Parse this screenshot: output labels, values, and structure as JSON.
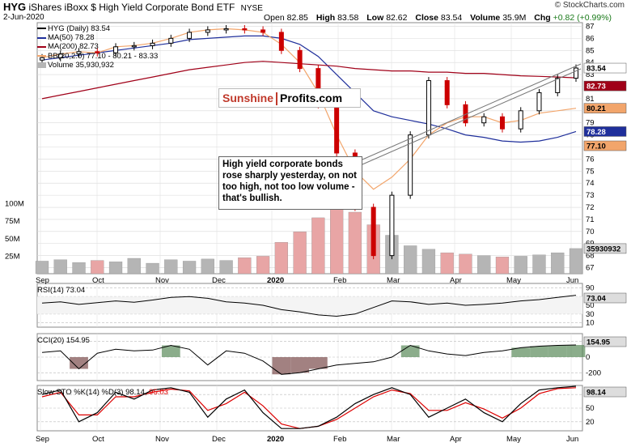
{
  "header": {
    "symbol": "HYG",
    "name": "iShares iBoxx $ High Yield Corporate Bond ETF",
    "exchange": "NYSE",
    "date": "2-Jun-2020",
    "open_label": "Open",
    "open": "82.85",
    "high_label": "High",
    "high": "83.58",
    "low_label": "Low",
    "low": "82.62",
    "close_label": "Close",
    "close": "83.54",
    "volume_label": "Volume",
    "volume": "35.9M",
    "chg_label": "Chg",
    "chg": "+0.82 (+0.99%)",
    "brand": "© StockCharts.com"
  },
  "legend": {
    "price": "HYG (Daily) 83.54",
    "ma50": "MA(50) 78.28",
    "ma200": "MA(200) 82.73",
    "bb": "BB(20,2.0) 77.10 - 80.21 - 83.33",
    "volume": "Volume 35,930,932"
  },
  "watermark": {
    "part1": "Sunshine",
    "part2": "Profits.com"
  },
  "annotation": "High yield corporate bonds rose sharply yesterday, on not too high, not too low volume - that's bullish.",
  "panels": {
    "rsi_label": "RSI(14) 73.04",
    "cci_label": "CCI(20) 154.95",
    "sto_label_a": "Slow STO %K(14) %D(3) 98.14,",
    "sto_label_b": "95.03"
  },
  "badges": {
    "price": "83.54",
    "ma200": "82.73",
    "bb_mid": "80.21",
    "ma50": "78.28",
    "bb_low": "77.10",
    "volume": "35930932",
    "rsi": "73.04",
    "cci": "154.95",
    "sto": "98.14"
  },
  "colors": {
    "ma50": "#1f2f9b",
    "ma200": "#a00018",
    "bb": "#f2a56b",
    "vol_up": "#b5b5b5",
    "vol_down": "#e8a5a5",
    "up_candle": "#000000",
    "down_candle": "#cc0000",
    "rsi_fill": "#2e6b2e",
    "cci_pos": "#5a8a5a",
    "cci_neg": "#7a4b4b",
    "sto_k": "#000000",
    "sto_d": "#dd0000"
  },
  "chart_data": [
    {
      "type": "candlestick",
      "title": "HYG (Daily)",
      "x_tick_labels": [
        "Sep",
        "Oct",
        "Nov",
        "Dec",
        "2020",
        "Feb",
        "Mar",
        "Apr",
        "May",
        "Jun"
      ],
      "y_tick_labels": [
        "67",
        "68",
        "69",
        "70",
        "71",
        "72",
        "73",
        "74",
        "75",
        "76",
        "77",
        "78",
        "79",
        "80",
        "81",
        "82",
        "83",
        "84",
        "85",
        "86",
        "87"
      ],
      "ylim": [
        66.5,
        87.3
      ],
      "x": [
        "Sep",
        "Sep",
        "Oct",
        "Oct",
        "Nov",
        "Nov",
        "Dec",
        "Dec",
        "2020",
        "2020",
        "Feb",
        "Feb",
        "Feb",
        "Mar",
        "Mar",
        "Mar",
        "Mar",
        "Mar",
        "Mar",
        "Mar",
        "Apr",
        "Apr",
        "Apr",
        "Apr",
        "May",
        "May",
        "May",
        "May",
        "Jun",
        "Jun"
      ],
      "close": [
        84.4,
        84.7,
        84.9,
        84.8,
        85.3,
        85.4,
        85.6,
        86.0,
        86.5,
        86.7,
        86.8,
        86.7,
        86.5,
        85.0,
        83.5,
        80.5,
        76.5,
        72.0,
        68.0,
        73.0,
        78.0,
        82.5,
        80.5,
        79.0,
        79.5,
        78.5,
        80.0,
        81.5,
        82.7,
        83.54
      ],
      "series": [
        {
          "name": "MA(50) 78.28",
          "values": [
            84.2,
            84.4,
            84.6,
            84.8,
            85.0,
            85.2,
            85.4,
            85.6,
            85.9,
            86.0,
            86.1,
            86.2,
            86.2,
            86.0,
            85.5,
            84.5,
            83.0,
            81.5,
            80.0,
            79.5,
            79.2,
            78.9,
            78.5,
            78.0,
            77.8,
            77.5,
            77.4,
            77.5,
            77.8,
            78.28
          ]
        },
        {
          "name": "MA(200) 82.73",
          "values": [
            81.0,
            81.3,
            81.6,
            81.9,
            82.2,
            82.5,
            82.8,
            83.1,
            83.4,
            83.6,
            83.8,
            84.0,
            84.1,
            84.0,
            83.9,
            83.8,
            83.7,
            83.5,
            83.4,
            83.3,
            83.3,
            83.2,
            83.2,
            83.1,
            83.1,
            83.0,
            82.9,
            82.85,
            82.8,
            82.73
          ]
        },
        {
          "name": "BB(20,2.0) 77.10 - 80.21 - 83.33",
          "values": [
            84.4,
            84.7,
            84.9,
            84.8,
            85.3,
            85.4,
            85.6,
            86.0,
            86.5,
            86.7,
            86.8,
            86.7,
            86.5,
            85.5,
            84.0,
            81.5,
            78.0,
            75.0,
            73.5,
            74.5,
            76.0,
            78.0,
            79.0,
            79.5,
            79.5,
            79.0,
            79.2,
            79.8,
            80.0,
            80.21
          ]
        }
      ]
    },
    {
      "type": "bar",
      "title": "Volume",
      "y_tick_labels": [
        "25M",
        "50M",
        "75M",
        "100M"
      ],
      "ylim": [
        0,
        110
      ],
      "values": [
        18,
        20,
        16,
        19,
        17,
        22,
        15,
        20,
        18,
        21,
        19,
        23,
        25,
        45,
        60,
        80,
        95,
        88,
        70,
        55,
        40,
        35,
        30,
        28,
        26,
        24,
        25,
        27,
        30,
        36
      ]
    },
    {
      "type": "line",
      "title": "RSI(14)",
      "y_tick_labels": [
        "90",
        "70",
        "50",
        "30",
        "10"
      ],
      "ylim": [
        0,
        100
      ],
      "values": [
        55,
        58,
        52,
        56,
        60,
        57,
        62,
        68,
        70,
        66,
        58,
        55,
        50,
        40,
        35,
        28,
        25,
        30,
        45,
        60,
        58,
        52,
        55,
        50,
        52,
        55,
        60,
        63,
        68,
        73.04
      ]
    },
    {
      "type": "line",
      "title": "CCI(20)",
      "y_tick_labels": [
        "200",
        "0",
        "-200"
      ],
      "ylim": [
        -300,
        300
      ],
      "values": [
        60,
        80,
        -150,
        50,
        100,
        80,
        90,
        150,
        100,
        -100,
        80,
        50,
        -50,
        -220,
        -200,
        -150,
        -100,
        -80,
        -60,
        0,
        150,
        80,
        40,
        20,
        60,
        80,
        120,
        140,
        150,
        154.95
      ]
    },
    {
      "type": "line",
      "title": "Slow STO %K(14) %D(3)",
      "y_tick_labels": [
        "80",
        "50",
        "20"
      ],
      "ylim": [
        0,
        100
      ],
      "series": [
        {
          "name": "%K",
          "values": [
            80,
            90,
            20,
            40,
            85,
            70,
            90,
            95,
            85,
            30,
            70,
            90,
            40,
            5,
            5,
            10,
            30,
            60,
            80,
            95,
            80,
            30,
            50,
            70,
            40,
            20,
            60,
            90,
            95,
            98.14
          ]
        },
        {
          "name": "%D",
          "values": [
            75,
            85,
            35,
            35,
            75,
            75,
            85,
            92,
            88,
            45,
            60,
            85,
            55,
            15,
            5,
            10,
            25,
            50,
            75,
            90,
            82,
            45,
            45,
            62,
            48,
            28,
            50,
            82,
            93,
            95.03
          ]
        }
      ]
    }
  ]
}
